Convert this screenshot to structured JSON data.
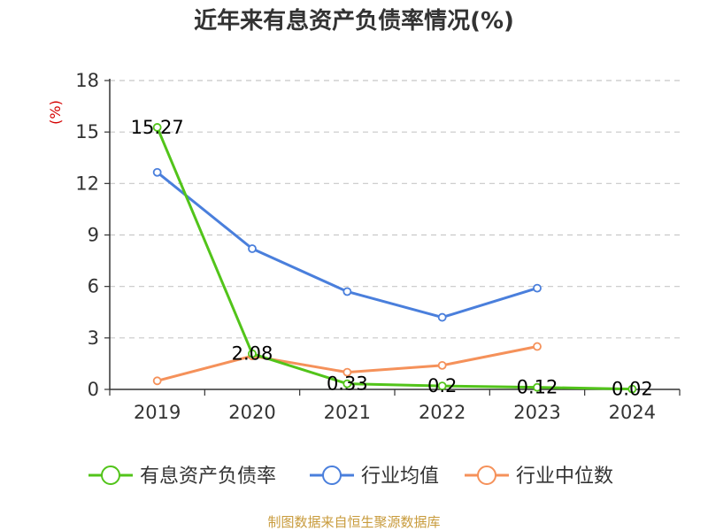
{
  "chart_data": {
    "type": "line",
    "title": "近年来有息资产负债率情况(%)",
    "ylabel": "(%)",
    "xlabel": "",
    "categories": [
      "2019",
      "2020",
      "2021",
      "2022",
      "2023",
      "2024"
    ],
    "ylim": [
      0,
      18
    ],
    "yticks": [
      0,
      3,
      6,
      9,
      12,
      15,
      18
    ],
    "grid": true,
    "legend_position": "bottom",
    "series": [
      {
        "name": "有息资产负债率",
        "color": "#52c41a",
        "values": [
          15.27,
          2.08,
          0.33,
          0.2,
          0.12,
          0.02
        ],
        "data_labels": [
          "15.27",
          "2.08",
          "0.33",
          "0.2",
          "0.12",
          "0.02"
        ]
      },
      {
        "name": "行业均值",
        "color": "#4a7fdc",
        "values": [
          12.65,
          8.2,
          5.7,
          4.2,
          5.9,
          null
        ]
      },
      {
        "name": "行业中位数",
        "color": "#f5915a",
        "values": [
          0.5,
          1.95,
          1.0,
          1.4,
          2.5,
          null
        ]
      }
    ],
    "source": "制图数据来自恒生聚源数据库"
  }
}
